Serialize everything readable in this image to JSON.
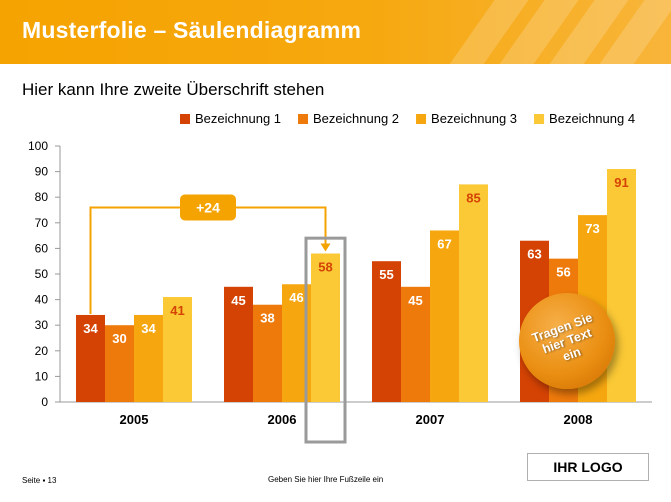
{
  "header": {
    "title": "Musterfolie – Säulendiagramm"
  },
  "subtitle": "Hier kann Ihre zweite Überschrift stehen",
  "chart_data": {
    "type": "bar",
    "categories": [
      "2005",
      "2006",
      "2007",
      "2008"
    ],
    "series": [
      {
        "name": "Bezeichnung 1",
        "color": "#d44304",
        "values": [
          34,
          45,
          55,
          63
        ]
      },
      {
        "name": "Bezeichnung 2",
        "color": "#ee7a0b",
        "values": [
          30,
          38,
          45,
          56
        ]
      },
      {
        "name": "Bezeichnung 3",
        "color": "#f6a70f",
        "values": [
          34,
          46,
          67,
          73
        ]
      },
      {
        "name": "Bezeichnung 4",
        "color": "#fbc936",
        "values": [
          41,
          58,
          85,
          91
        ]
      }
    ],
    "ylim": [
      0,
      100
    ],
    "yticks": [
      0,
      10,
      20,
      30,
      40,
      50,
      60,
      70,
      80,
      90,
      100
    ],
    "legend_position": "top-right",
    "grid": false,
    "label_colors": {
      "default": "#ffffff",
      "Bezeichnung 4": "#d44304"
    },
    "annotation": {
      "text": "+24",
      "color": "#f5a300",
      "from_series": "Bezeichnung 1",
      "from_category": "2005",
      "to_series": "Bezeichnung 4",
      "to_category": "2006"
    }
  },
  "badge": {
    "lines": [
      "Tragen Sie",
      "hier Text",
      "ein"
    ]
  },
  "footer": {
    "page": "Seite ▪ 13",
    "text": "Geben Sie hier Ihre Fußzeile ein"
  },
  "logo": "IHR LOGO"
}
